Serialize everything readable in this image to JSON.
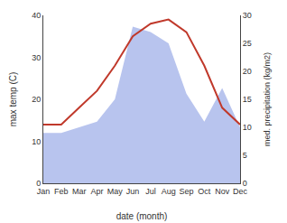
{
  "chart_data": {
    "type": "line",
    "xlabel": "date (month)",
    "ylabel": "max temp (C)",
    "y2label": "med. precipitation (kg/m2)",
    "categories": [
      "Jan",
      "Feb",
      "Mar",
      "Apr",
      "May",
      "Jun",
      "Jul",
      "Aug",
      "Sep",
      "Oct",
      "Nov",
      "Dec"
    ],
    "series": [
      {
        "type": "area",
        "color": "#b8c4ee",
        "axis": "y2",
        "values": [
          9,
          9,
          10,
          11,
          15,
          28,
          27,
          25,
          16,
          11,
          17,
          10
        ]
      },
      {
        "type": "line",
        "color": "#c0392b",
        "values": [
          14,
          14,
          18,
          22,
          28,
          35,
          38,
          39,
          36,
          28,
          18,
          14
        ]
      }
    ],
    "ylim": [
      0,
      40
    ],
    "yticks": [
      0,
      10,
      20,
      30,
      40
    ],
    "y2lim": [
      0,
      30
    ],
    "y2ticks": [
      0,
      5,
      10,
      15,
      20,
      25,
      30
    ],
    "grid": false
  }
}
